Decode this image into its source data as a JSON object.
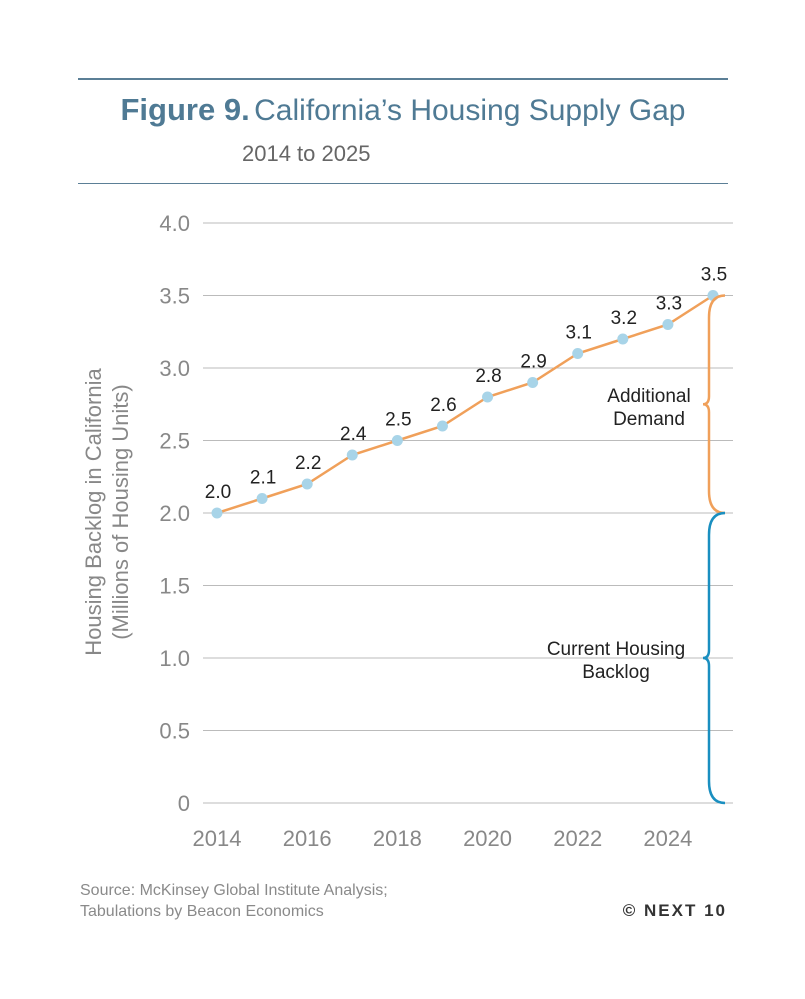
{
  "header": {
    "figure_label": "Figure 9.",
    "title": "California’s Housing Supply Gap",
    "subtitle": "2014 to 2025"
  },
  "footer": {
    "source_line1": "Source: McKinsey Global Institute Analysis;",
    "source_line2": "Tabulations by Beacon Economics",
    "copyright": "© NEXT 10"
  },
  "chart_data": {
    "type": "line",
    "x": [
      2014,
      2015,
      2016,
      2017,
      2018,
      2019,
      2020,
      2021,
      2022,
      2023,
      2024,
      2025
    ],
    "values": [
      2.0,
      2.1,
      2.2,
      2.4,
      2.5,
      2.6,
      2.8,
      2.9,
      3.1,
      3.2,
      3.3,
      3.5
    ],
    "data_labels": [
      "2.0",
      "2.1",
      "2.2",
      "2.4",
      "2.5",
      "2.6",
      "2.8",
      "2.9",
      "3.1",
      "3.2",
      "3.3",
      "3.5"
    ],
    "xlim": [
      2014,
      2025
    ],
    "ylim": [
      0,
      4.0
    ],
    "x_ticks": [
      "2014",
      "2016",
      "2018",
      "2020",
      "2022",
      "2024"
    ],
    "y_ticks": [
      "0",
      "0.5",
      "1.0",
      "1.5",
      "2.0",
      "2.5",
      "3.0",
      "3.5",
      "4.0"
    ],
    "ylabel_line1": "Housing Backlog in California",
    "ylabel_line2": "(Millions of Housing Units)",
    "xlabel": "",
    "grid": true,
    "annotations": [
      {
        "label_lines": [
          "Additional",
          "Demand"
        ],
        "range": [
          2.0,
          3.5
        ],
        "color": "#f0a05a"
      },
      {
        "label_lines": [
          "Current Housing",
          "Backlog"
        ],
        "range": [
          0,
          2.0
        ],
        "color": "#1a8fc0"
      }
    ],
    "colors": {
      "line": "#f0a05a",
      "marker": "#a8d4e8",
      "grid": "#bbbbbb",
      "tick_text": "#888888"
    }
  }
}
